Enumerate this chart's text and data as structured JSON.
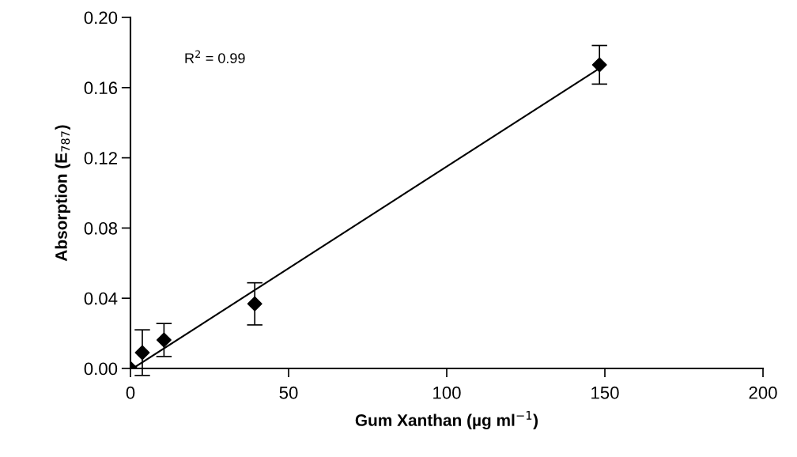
{
  "chart_data": {
    "type": "scatter",
    "xlabel": "Gum Xanthan (µg ml$^{−1}$)",
    "ylabel": "Absorption (E$_{787}$)",
    "annotations": [
      "R$^{2}$ = 0.99"
    ],
    "series": [
      {
        "color": "#000000",
        "marker": "diamond",
        "x": [
          0,
          3.75,
          10.6,
          39.3,
          148.3
        ],
        "values": [
          0.0,
          0.009,
          0.0162,
          0.0368,
          0.173
        ],
        "errors": [
          null,
          0.013,
          0.0094,
          0.012,
          0.011
        ]
      },
      {
        "type": "line",
        "color": "#000000",
        "marker": "none",
        "x": [
          0.75,
          148.3
        ],
        "values": [
          0.0,
          0.171
        ]
      }
    ],
    "xlim": [
      0,
      200
    ],
    "xticks": [
      0,
      50,
      100,
      150,
      200
    ],
    "ylim": [
      0,
      0.2
    ],
    "yticks": [
      {
        "value": 0,
        "label": "0.00"
      },
      {
        "value": 0.04,
        "label": "0.04"
      },
      {
        "value": 0.08,
        "label": "0.08"
      },
      {
        "value": 0.12,
        "label": "0.12"
      },
      {
        "value": 0.16,
        "label": "0.16"
      },
      {
        "value": 0.2,
        "label": "0.20"
      }
    ],
    "grid": false,
    "legend": false
  }
}
